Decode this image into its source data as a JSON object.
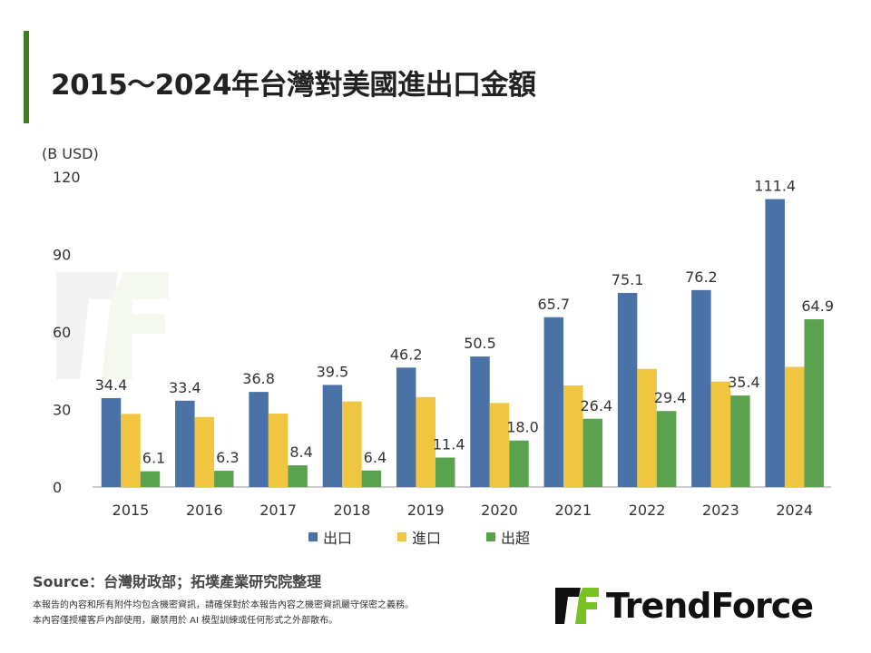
{
  "title": "2015～2024年台灣對美國進出口金額",
  "source": "Source：台灣財政部；拓墣產業研究院整理",
  "notes": [
    "本報告的內容和所有附件均包含機密資訊，請確保對於本報告內容之機密資訊嚴守保密之義務。",
    "本內容僅授權客戶內部使用，嚴禁用於 AI 模型訓練或任何形式之外部散布。"
  ],
  "logo": {
    "text": "TrendForce",
    "colors": {
      "black": "#111111",
      "green": "#7ac123"
    }
  },
  "watermark": "TrendForce",
  "colors": {
    "accent": "#3d7f1c"
  },
  "chart_data": {
    "type": "bar",
    "title": "2015～2024年台灣對美國進出口金額",
    "ylabel": "(B USD)",
    "xlabel": "",
    "ylim": [
      0,
      120
    ],
    "yticks": [
      0,
      30,
      60,
      90,
      120
    ],
    "grid": false,
    "legend_position": "bottom",
    "categories": [
      "2015",
      "2016",
      "2017",
      "2018",
      "2019",
      "2020",
      "2021",
      "2022",
      "2023",
      "2024"
    ],
    "series": [
      {
        "name": "出口",
        "color": "#4a72a6",
        "values": [
          34.4,
          33.4,
          36.8,
          39.5,
          46.2,
          50.5,
          65.7,
          75.1,
          76.2,
          111.4
        ],
        "labels": [
          "34.4",
          "33.4",
          "36.8",
          "39.5",
          "46.2",
          "50.5",
          "65.7",
          "75.1",
          "76.2",
          "111.4"
        ]
      },
      {
        "name": "進口",
        "color": "#f0c640",
        "values": [
          28.3,
          27.1,
          28.4,
          33.1,
          34.8,
          32.5,
          39.3,
          45.7,
          40.8,
          46.5
        ],
        "labels": null
      },
      {
        "name": "出超",
        "color": "#5ba24e",
        "values": [
          6.1,
          6.3,
          8.4,
          6.4,
          11.4,
          18.0,
          26.4,
          29.4,
          35.4,
          64.9
        ],
        "labels": [
          "6.1",
          "6.3",
          "8.4",
          "6.4",
          "11.4",
          "18.0",
          "26.4",
          "29.4",
          "35.4",
          "64.9"
        ]
      }
    ]
  }
}
